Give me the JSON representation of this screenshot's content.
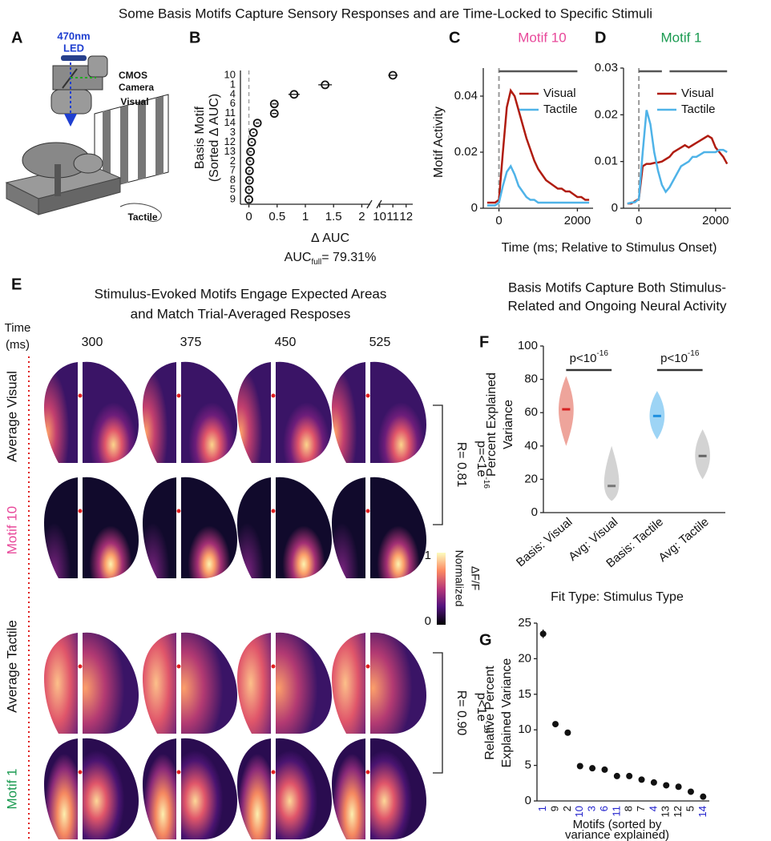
{
  "title": "Some Basis Motifs Capture Sensory Responses and are Time-Locked to Specific Stimuli",
  "panel_labels": [
    "A",
    "B",
    "C",
    "D",
    "E",
    "F",
    "G"
  ],
  "panel_a": {
    "led": [
      "470nm",
      "LED"
    ],
    "camera": [
      "CMOS",
      "Camera"
    ],
    "visual": "Visual",
    "tactile": "Tactile"
  },
  "panel_e": {
    "title": [
      "Stimulus-Evoked Motifs Engage Expected Areas",
      "and Match Trial-Averaged Resposes"
    ],
    "time_label": [
      "Time",
      "(ms)"
    ],
    "times": [
      "300",
      "375",
      "450",
      "525"
    ],
    "rows": [
      "Average Visual",
      "Motif 10",
      "Average Tactile",
      "Motif 1"
    ],
    "row_colors": [
      "#111111",
      "#e8489a",
      "#111111",
      "#1a9a50"
    ],
    "stats": [
      {
        "r": "R= 0.81",
        "p": "p=<1e",
        "sup": "-16"
      },
      {
        "r": "R= 0.90",
        "p": "p<1e",
        "sup": "-16"
      }
    ],
    "colorbar": {
      "max": "1",
      "min": "0",
      "label": [
        "Normalized",
        "ΔF/F"
      ]
    }
  },
  "chart_data": [
    {
      "type": "dot",
      "orientation": "horizontal",
      "ylabel": [
        "Basis Motif",
        "(Sorted Δ AUC)"
      ],
      "xlabel": "Δ AUC",
      "annotation": {
        "text": "AUC",
        "sub": "full",
        "rest": "= 79.31%"
      },
      "categories": [
        "10",
        "1",
        "4",
        "6",
        "11",
        "14",
        "3",
        "12",
        "13",
        "2",
        "7",
        "8",
        "5",
        "9"
      ],
      "values": [
        11.0,
        1.35,
        0.8,
        0.45,
        0.45,
        0.15,
        0.08,
        0.05,
        0.03,
        0.02,
        0.01,
        0.01,
        0.005,
        0
      ],
      "errors": [
        0.35,
        0.12,
        0.1,
        0.04,
        0.04,
        0.03,
        0.02,
        0.02,
        0.02,
        0.02,
        0.02,
        0.02,
        0.02,
        0.02
      ],
      "color": "#111111",
      "xlim": [
        -0.15,
        12.5
      ],
      "axis_break": [
        2.15,
        9.9
      ],
      "xticks": [
        0,
        0.5,
        1,
        1.5,
        2,
        10,
        11,
        12
      ],
      "ref_line": 0
    },
    {
      "type": "line",
      "title": "Motif 10",
      "title_color": "#e8489a",
      "ylabel": "Motif Activity",
      "xlabel": "Time (ms; Relative to Stimulus Onset)",
      "x": [
        -300,
        -200,
        -100,
        0,
        100,
        200,
        300,
        400,
        500,
        600,
        700,
        800,
        900,
        1000,
        1100,
        1200,
        1300,
        1400,
        1500,
        1600,
        1700,
        1800,
        1900,
        2000,
        2100,
        2200,
        2300
      ],
      "series": [
        {
          "name": "Visual",
          "color": "#b01c10",
          "values": [
            0.002,
            0.002,
            0.002,
            0.003,
            0.02,
            0.036,
            0.042,
            0.04,
            0.035,
            0.03,
            0.025,
            0.021,
            0.017,
            0.014,
            0.012,
            0.01,
            0.009,
            0.008,
            0.007,
            0.007,
            0.006,
            0.006,
            0.005,
            0.004,
            0.004,
            0.003,
            0.003
          ]
        },
        {
          "name": "Tactile",
          "color": "#4fb3e8",
          "values": [
            0.001,
            0.001,
            0.001,
            0.002,
            0.008,
            0.013,
            0.015,
            0.012,
            0.008,
            0.006,
            0.004,
            0.003,
            0.003,
            0.002,
            0.002,
            0.002,
            0.002,
            0.002,
            0.002,
            0.002,
            0.002,
            0.002,
            0.002,
            0.002,
            0.002,
            0.002,
            0.002
          ]
        }
      ],
      "xlim": [
        -400,
        2400
      ],
      "xticks": [
        0,
        2000
      ],
      "ylim": [
        0,
        0.05
      ],
      "yticks": [
        0,
        0.02,
        0.04
      ],
      "ref_line": 0,
      "sig_bars": [
        [
          0,
          2000
        ]
      ],
      "legend": "upper right"
    },
    {
      "type": "line",
      "title": "Motif 1",
      "title_color": "#1a9a50",
      "x": [
        -300,
        -200,
        -100,
        0,
        100,
        200,
        300,
        400,
        500,
        600,
        700,
        800,
        900,
        1000,
        1100,
        1200,
        1300,
        1400,
        1500,
        1600,
        1700,
        1800,
        1900,
        2000,
        2100,
        2200,
        2300
      ],
      "series": [
        {
          "name": "Visual",
          "color": "#b01c10",
          "values": [
            0.001,
            0.001,
            0.0015,
            0.002,
            0.009,
            0.0095,
            0.0095,
            0.0097,
            0.0098,
            0.01,
            0.0105,
            0.011,
            0.012,
            0.0125,
            0.013,
            0.0135,
            0.013,
            0.0135,
            0.014,
            0.0145,
            0.015,
            0.0155,
            0.015,
            0.013,
            0.012,
            0.011,
            0.0095
          ]
        },
        {
          "name": "Tactile",
          "color": "#4fb3e8",
          "values": [
            0.001,
            0.0012,
            0.0013,
            0.002,
            0.012,
            0.021,
            0.018,
            0.012,
            0.008,
            0.005,
            0.0035,
            0.0045,
            0.006,
            0.0075,
            0.009,
            0.0095,
            0.01,
            0.011,
            0.011,
            0.0115,
            0.012,
            0.012,
            0.012,
            0.012,
            0.0125,
            0.0125,
            0.012
          ]
        }
      ],
      "xlim": [
        -400,
        2400
      ],
      "xticks": [
        0,
        2000
      ],
      "ylim": [
        0,
        0.03
      ],
      "yticks": [
        0,
        0.01,
        0.02,
        0.03
      ],
      "ref_line": 0,
      "sig_bars": [
        [
          0,
          600
        ],
        [
          800,
          2300
        ]
      ],
      "legend": "upper right"
    },
    {
      "type": "violin",
      "title": [
        "Basis Motifs Capture Both Stimulus-",
        "Related and Ongoing Neural Activity"
      ],
      "ylabel": [
        "Percent Explained",
        "Variance"
      ],
      "xlabel": "Fit Type: Stimulus Type",
      "categories": [
        "Basis: Visual",
        "Avg: Visual",
        "Basis: Tactile",
        "Avg: Tactile"
      ],
      "values": [
        62,
        16,
        58,
        34
      ],
      "ranges": [
        [
          40,
          82
        ],
        [
          7,
          40
        ],
        [
          44,
          73
        ],
        [
          20,
          50
        ]
      ],
      "colors": [
        "#e8857a",
        "#c4c4c4",
        "#7cc6f2",
        "#c4c4c4"
      ],
      "median_colors": [
        "#d62020",
        "#777777",
        "#1e90e0",
        "#666666"
      ],
      "ylim": [
        0,
        100
      ],
      "yticks": [
        0,
        20,
        40,
        60,
        80,
        100
      ],
      "significance": [
        {
          "text": "p<10",
          "sup": "-16"
        },
        {
          "text": "p<10",
          "sup": "-16"
        }
      ]
    },
    {
      "type": "dot",
      "orientation": "vertical",
      "ylabel": [
        "Relative Percent",
        "Explained Variance"
      ],
      "xlabel": [
        "Motifs (sorted by",
        "variance explained)"
      ],
      "categories": [
        "1",
        "9",
        "2",
        "10",
        "3",
        "6",
        "11",
        "8",
        "7",
        "4",
        "13",
        "12",
        "5",
        "14"
      ],
      "category_colors": [
        "#2222cc",
        "#111111",
        "#111111",
        "#2222cc",
        "#2222cc",
        "#2222cc",
        "#2222cc",
        "#111111",
        "#111111",
        "#2222cc",
        "#111111",
        "#111111",
        "#111111",
        "#2222cc"
      ],
      "values": [
        23.5,
        10.8,
        9.6,
        4.9,
        4.6,
        4.4,
        3.5,
        3.5,
        3.0,
        2.6,
        2.2,
        2.0,
        1.3,
        0.6
      ],
      "errors": [
        0.6,
        0.35,
        0.35,
        0.25,
        0.2,
        0.2,
        0.2,
        0.2,
        0.2,
        0.15,
        0.15,
        0.15,
        0.15,
        0.1
      ],
      "color": "#111111",
      "ylim": [
        0,
        25
      ],
      "yticks": [
        0,
        5,
        10,
        15,
        20,
        25
      ]
    }
  ]
}
